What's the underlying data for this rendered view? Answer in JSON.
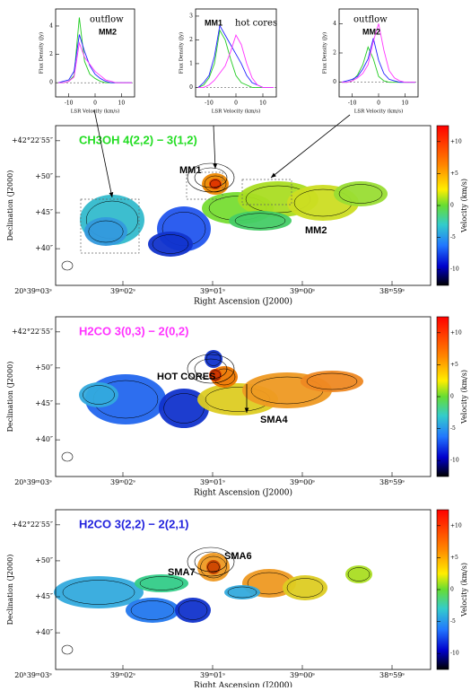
{
  "spectra": {
    "xlabel": "LSR Velocity (km/s)",
    "ylabel": "Flux Density (Jy)",
    "x": [
      -14,
      -12,
      -10,
      -8,
      -6,
      -4,
      -2,
      0,
      2,
      4,
      6,
      8,
      10,
      12,
      14
    ],
    "xlim": [
      -15,
      15
    ],
    "xticks": [
      -10,
      0,
      10
    ],
    "panels": [
      {
        "labels": [
          "outflow",
          "MM2"
        ],
        "ylim": [
          -1,
          5.2
        ],
        "yticks": [
          0,
          2,
          4
        ],
        "series": [
          {
            "color": "#22cc22",
            "values": [
              0,
              0,
              0.1,
              0.5,
              4.6,
              1.5,
              0.6,
              0.3,
              0.1,
              0,
              0,
              0,
              0,
              0,
              0
            ]
          },
          {
            "color": "#2020ff",
            "values": [
              0,
              0.1,
              0.2,
              0.8,
              3.4,
              2.2,
              1.2,
              0.6,
              0.3,
              0.1,
              0,
              0,
              0,
              0,
              0
            ]
          },
          {
            "color": "#ff33ff",
            "values": [
              0,
              0,
              0.1,
              0.4,
              2.8,
              1.8,
              1.3,
              0.8,
              0.5,
              0.2,
              0.1,
              0,
              0,
              0,
              0
            ]
          }
        ]
      },
      {
        "labels": [
          "MM1",
          "hot cores"
        ],
        "ylim": [
          -0.4,
          3.3
        ],
        "yticks": [
          0,
          1,
          2,
          3
        ],
        "series": [
          {
            "color": "#22cc22",
            "values": [
              0,
              0.1,
              0.4,
              1.0,
              2.4,
              2.0,
              1.2,
              0.5,
              0.2,
              0.1,
              0,
              0,
              0,
              0,
              0
            ]
          },
          {
            "color": "#2020ff",
            "values": [
              0,
              0.2,
              0.5,
              1.3,
              2.6,
              2.2,
              1.8,
              1.4,
              1.0,
              0.5,
              0.2,
              0.1,
              0,
              0,
              0
            ]
          },
          {
            "color": "#ff33ff",
            "values": [
              0,
              0,
              0.1,
              0.3,
              0.6,
              0.9,
              1.5,
              2.2,
              1.8,
              1.0,
              0.4,
              0.1,
              0,
              0,
              0
            ]
          }
        ]
      },
      {
        "labels": [
          "outflow",
          "MM2"
        ],
        "ylim": [
          -1,
          5
        ],
        "yticks": [
          0,
          2,
          4
        ],
        "series": [
          {
            "color": "#22cc22",
            "values": [
              0,
              0,
              0.1,
              0.5,
              1.2,
              2.4,
              1.6,
              0.4,
              0.1,
              0,
              0,
              0,
              0,
              0,
              0
            ]
          },
          {
            "color": "#2020ff",
            "values": [
              0,
              0.1,
              0.2,
              0.4,
              0.9,
              1.6,
              3.0,
              1.5,
              0.6,
              0.2,
              0.1,
              0,
              0,
              0,
              0
            ]
          },
          {
            "color": "#ff33ff",
            "values": [
              0,
              0,
              0.1,
              0.3,
              0.6,
              1.2,
              2.8,
              4.0,
              2.2,
              0.8,
              0.3,
              0.1,
              0,
              0,
              0
            ]
          }
        ]
      }
    ]
  },
  "maps": {
    "dec_label": "Declination (J2000)",
    "ra_label": "Right Ascension (J2000)",
    "colorbar_label": "Velocity (km/s)",
    "clim": [
      -12.5,
      12.5
    ],
    "cticks": [
      {
        "value": 10,
        "label": "+10"
      },
      {
        "value": 5,
        "label": "+5"
      },
      0,
      -5,
      -10
    ],
    "ralim": [
      2.75,
      -1.43
    ],
    "raticks": [
      {
        "value": 3,
        "label": "20ʰ39ᵐ03ˢ"
      },
      {
        "value": 2,
        "label": "39ᵐ02ˢ"
      },
      {
        "value": 1,
        "label": "39ᵐ01ˢ"
      },
      {
        "value": 0,
        "label": "39ᵐ00ˢ"
      },
      {
        "value": -1,
        "label": "38ᵐ59ˢ"
      }
    ],
    "declim": [
      34.9,
      57.1
    ],
    "decticks": [
      {
        "value": 55,
        "label": "+42°22′55″"
      },
      {
        "value": 50,
        "label": "+50″"
      },
      {
        "value": 45,
        "label": "+45″"
      },
      {
        "value": 40,
        "label": "+40″"
      }
    ],
    "panels": [
      {
        "title": "CH3OH 4(2,2) − 3(1,2)",
        "color": "#22dd22",
        "labels": [
          "MM1",
          "MM2"
        ]
      },
      {
        "title": "H2CO 3(0,3) − 2(0,2)",
        "color": "#ff33ff",
        "labels": [
          "HOT CORES",
          "SMA4"
        ]
      },
      {
        "title": "H2CO 3(2,2) − 2(2,1)",
        "color": "#2222dd",
        "labels": [
          "SMA6",
          "SMA7"
        ]
      }
    ]
  }
}
